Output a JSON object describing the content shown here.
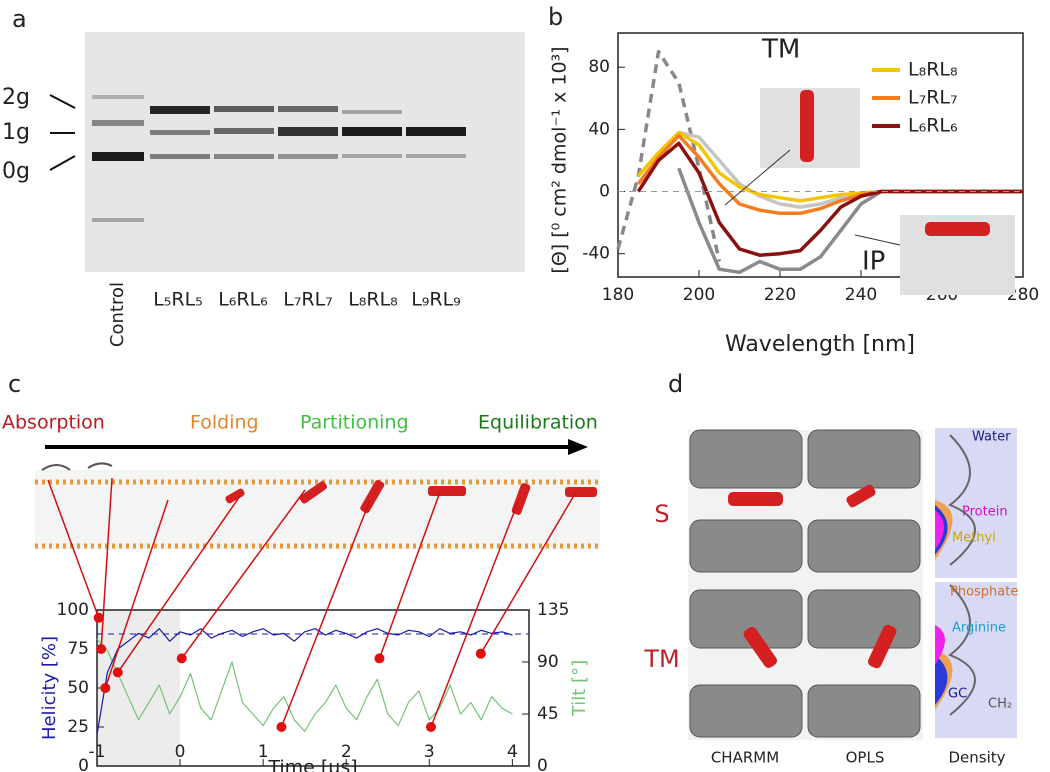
{
  "panels": {
    "a": {
      "label": "a",
      "bands": [
        "2g",
        "1g",
        "0g"
      ],
      "lanes": [
        "Control",
        "L₅RL₅",
        "L₆RL₆",
        "L₇RL₇",
        "L₈RL₈",
        "L₉RL₉"
      ]
    },
    "b": {
      "label": "b"
    },
    "c": {
      "label": "c",
      "stages": [
        "Absorption",
        "Folding",
        "Partitioning",
        "Equilibration"
      ]
    },
    "d": {
      "label": "d",
      "rows": [
        "S",
        "TM"
      ],
      "columns": [
        "CHARMM",
        "OPLS",
        "Density"
      ],
      "density_labels": [
        "Water",
        "Protein",
        "Methyl",
        "Phosphate",
        "Arginine",
        "GC",
        "CH₂"
      ]
    }
  },
  "chart_data": [
    {
      "type": "line",
      "x_label": "Wavelength [nm]",
      "y_label": "[Θ] [⁰ cm² dmol⁻¹ x 10³]",
      "annotations": [
        "TM",
        "IP"
      ],
      "x": [
        180,
        185,
        190,
        195,
        200,
        205,
        210,
        215,
        220,
        225,
        230,
        235,
        240,
        245,
        250,
        255,
        260,
        265,
        270,
        275,
        280
      ],
      "xlim": [
        180,
        280
      ],
      "xticks": [
        180,
        200,
        220,
        240,
        260,
        280
      ],
      "ylim": [
        -55,
        102
      ],
      "yticks": [
        -40,
        0,
        40,
        80
      ],
      "legend": "upper right",
      "series": [
        {
          "color": "#888888",
          "style": "dash",
          "values": [
            -37,
            10,
            90,
            70,
            15,
            -45,
            null,
            null,
            null,
            null,
            null,
            null,
            null,
            null,
            null,
            null,
            null,
            null,
            null,
            null,
            null
          ]
        },
        {
          "color": "#c4c4c4",
          "values": [
            null,
            5,
            22,
            38,
            35,
            20,
            5,
            -3,
            -8,
            -10,
            -8,
            -4,
            -1,
            0,
            0,
            0,
            0,
            0,
            0,
            0,
            0
          ]
        },
        {
          "color": "#8a8a8a",
          "values": [
            null,
            null,
            null,
            15,
            -20,
            -50,
            -52,
            -45,
            -50,
            -50,
            -42,
            -25,
            -8,
            0,
            0,
            0,
            0,
            0,
            0,
            0,
            0
          ]
        },
        {
          "name": "L₈RL₈",
          "color": "#f5c400",
          "values": [
            null,
            10,
            25,
            38,
            30,
            12,
            3,
            -2,
            -4,
            -6,
            -4,
            -2,
            -1,
            0,
            0,
            0,
            0,
            0,
            0,
            0,
            0
          ]
        },
        {
          "name": "L₇RL₇",
          "color": "#f57c1f",
          "values": [
            null,
            5,
            22,
            36,
            22,
            5,
            -8,
            -12,
            -14,
            -14,
            -11,
            -6,
            -2,
            0,
            0,
            0,
            0,
            0,
            0,
            0,
            0
          ]
        },
        {
          "name": "L₆RL₆",
          "color": "#8b1010",
          "values": [
            null,
            0,
            20,
            31,
            12,
            -20,
            -37,
            -41,
            -40,
            -38,
            -25,
            -10,
            -3,
            0,
            0,
            0,
            0,
            0,
            0,
            0,
            0
          ]
        }
      ]
    },
    {
      "type": "line",
      "x_label": "Time [µs]",
      "y_label": "Helicity [%]",
      "y2_label": "Tilt [°]",
      "x": [
        -1,
        -0.875,
        -0.75,
        -0.625,
        -0.5,
        -0.375,
        -0.25,
        -0.125,
        0,
        0.125,
        0.25,
        0.375,
        0.5,
        0.625,
        0.75,
        0.875,
        1,
        1.125,
        1.25,
        1.375,
        1.5,
        1.625,
        1.75,
        1.875,
        2,
        2.125,
        2.25,
        2.375,
        2.5,
        2.625,
        2.75,
        2.875,
        3,
        3.125,
        3.25,
        3.375,
        3.5,
        3.625,
        3.75,
        3.875,
        4
      ],
      "xlim": [
        -1,
        4.2
      ],
      "xticks": [
        -1,
        0,
        1,
        2,
        3,
        4
      ],
      "ylim": [
        0,
        100
      ],
      "yticks": [
        0,
        25,
        50,
        75,
        100
      ],
      "y2lim": [
        0,
        135
      ],
      "y2ticks": [
        0,
        45,
        90,
        135
      ],
      "series": [
        {
          "color": "#74c476",
          "axis": "y2",
          "values": [
            110,
            100,
            80,
            60,
            40,
            55,
            70,
            45,
            60,
            80,
            50,
            40,
            65,
            90,
            55,
            45,
            35,
            50,
            60,
            40,
            30,
            45,
            55,
            70,
            50,
            40,
            60,
            75,
            45,
            35,
            55,
            65,
            40,
            50,
            70,
            45,
            55,
            40,
            60,
            50,
            45
          ]
        },
        {
          "color": "#1a1aa8",
          "values": [
            20,
            60,
            75,
            80,
            85,
            82,
            88,
            80,
            86,
            84,
            88,
            82,
            85,
            87,
            83,
            86,
            88,
            84,
            85,
            80,
            86,
            88,
            84,
            87,
            85,
            82,
            86,
            88,
            85,
            84,
            87,
            86,
            83,
            88,
            85,
            86,
            84,
            87,
            85,
            86,
            84
          ]
        },
        {
          "color": "#e01010",
          "style": "dots",
          "x": [
            -0.98,
            -0.95,
            -0.9,
            -0.75,
            0.02,
            1.22,
            2.4,
            3.02,
            3.62
          ],
          "values": [
            95,
            75,
            50,
            60,
            69,
            25,
            69,
            25,
            72
          ]
        }
      ]
    }
  ]
}
